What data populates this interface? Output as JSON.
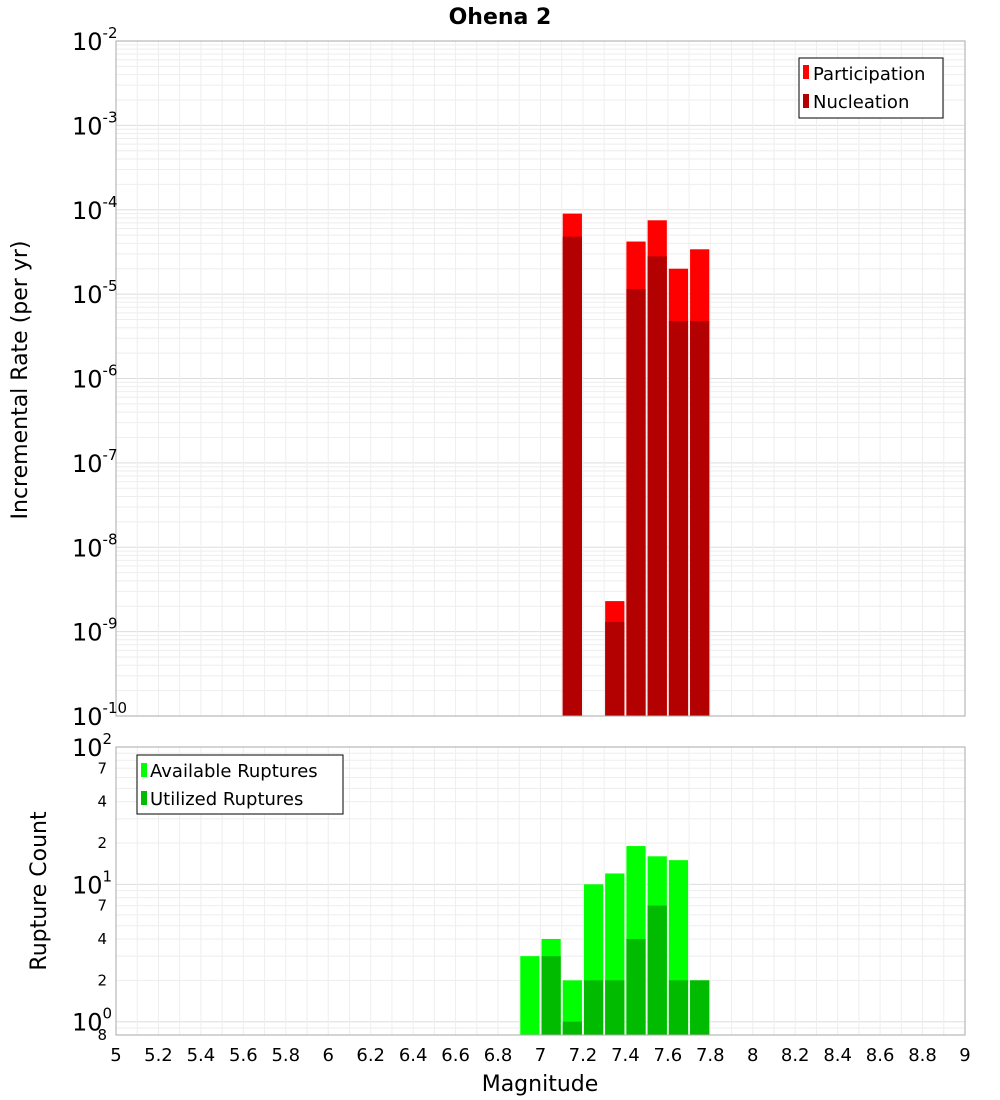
{
  "chart_data": [
    {
      "type": "bar",
      "title": "Ohena 2",
      "ylabel": "Incremental Rate (per yr)",
      "yscale": "log",
      "ylim": [
        1e-10,
        0.01
      ],
      "xlim": [
        5,
        9
      ],
      "bin_width": 0.1,
      "grid": true,
      "legend_position": "top-right",
      "y_ticks": [
        {
          "base": "10",
          "exp": "-2"
        },
        {
          "base": "10",
          "exp": "-3"
        },
        {
          "base": "10",
          "exp": "-4"
        },
        {
          "base": "10",
          "exp": "-5"
        },
        {
          "base": "10",
          "exp": "-6"
        },
        {
          "base": "10",
          "exp": "-7"
        },
        {
          "base": "10",
          "exp": "-8"
        },
        {
          "base": "10",
          "exp": "-9"
        },
        {
          "base": "10",
          "exp": "-10"
        }
      ],
      "series": [
        {
          "name": "Participation",
          "color": "#ff0000",
          "x": [
            7.15,
            7.35,
            7.45,
            7.55,
            7.65,
            7.75
          ],
          "values": [
            9e-05,
            2.3e-09,
            4.2e-05,
            7.5e-05,
            2e-05,
            3.4e-05
          ]
        },
        {
          "name": "Nucleation",
          "color": "#b30000",
          "x": [
            7.15,
            7.35,
            7.45,
            7.55,
            7.65,
            7.75
          ],
          "values": [
            4.8e-05,
            1.3e-09,
            1.15e-05,
            2.8e-05,
            4.8e-06,
            4.8e-06
          ]
        }
      ]
    },
    {
      "type": "bar",
      "xlabel": "Magnitude",
      "ylabel": "Rupture Count",
      "yscale": "log",
      "ylim": [
        0.8,
        100
      ],
      "xlim": [
        5,
        9
      ],
      "bin_width": 0.1,
      "grid": true,
      "legend_position": "top-left",
      "x_ticks": [
        "5",
        "5.2",
        "5.4",
        "5.6",
        "5.8",
        "6",
        "6.2",
        "6.4",
        "6.6",
        "6.8",
        "7",
        "7.2",
        "7.4",
        "7.6",
        "7.8",
        "8",
        "8.2",
        "8.4",
        "8.6",
        "8.8",
        "9"
      ],
      "y_major_ticks": [
        {
          "base": "10",
          "exp": "2"
        },
        {
          "base": "10",
          "exp": "1"
        },
        {
          "base": "10",
          "exp": "0"
        }
      ],
      "y_minor_ticks": [
        "7",
        "4",
        "2",
        "7",
        "4",
        "2",
        "8"
      ],
      "series": [
        {
          "name": "Available Ruptures",
          "color": "#00ff00",
          "x": [
            6.95,
            7.05,
            7.15,
            7.25,
            7.35,
            7.45,
            7.55,
            7.65,
            7.75
          ],
          "values": [
            3,
            4,
            2,
            10,
            12,
            19,
            16,
            15,
            2
          ]
        },
        {
          "name": "Utilized Ruptures",
          "color": "#00bb00",
          "x": [
            7.05,
            7.15,
            7.25,
            7.35,
            7.45,
            7.55,
            7.65,
            7.75
          ],
          "values": [
            3,
            1,
            2,
            2,
            4,
            7,
            2,
            2
          ]
        }
      ]
    }
  ]
}
